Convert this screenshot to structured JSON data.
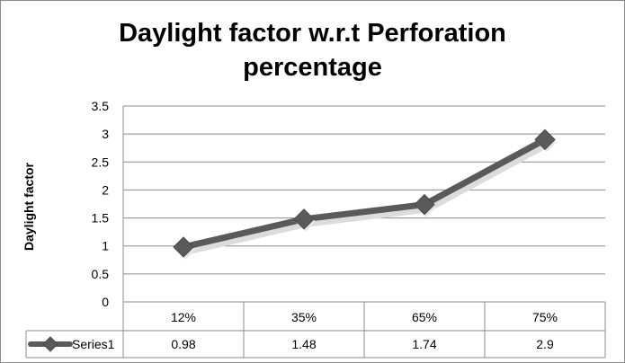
{
  "chart_data": {
    "type": "line",
    "title_lines": [
      "Daylight factor w.r.t Perforation",
      "percentage"
    ],
    "xlabel": "",
    "ylabel": "Daylight factor",
    "categories": [
      "12%",
      "35%",
      "65%",
      "75%"
    ],
    "series": [
      {
        "name": "Series1",
        "values": [
          0.98,
          1.48,
          1.74,
          2.9
        ],
        "color": "#5a5a5a",
        "marker": "diamond"
      }
    ],
    "data_table": {
      "values_text": [
        "0.98",
        "1.48",
        "1.74",
        "2.9"
      ]
    },
    "ylim": [
      0,
      3.5
    ],
    "yticks": [
      "0",
      "0.5",
      "1",
      "1.5",
      "2",
      "2.5",
      "3",
      "3.5"
    ],
    "grid": true,
    "legend": "data-table"
  }
}
